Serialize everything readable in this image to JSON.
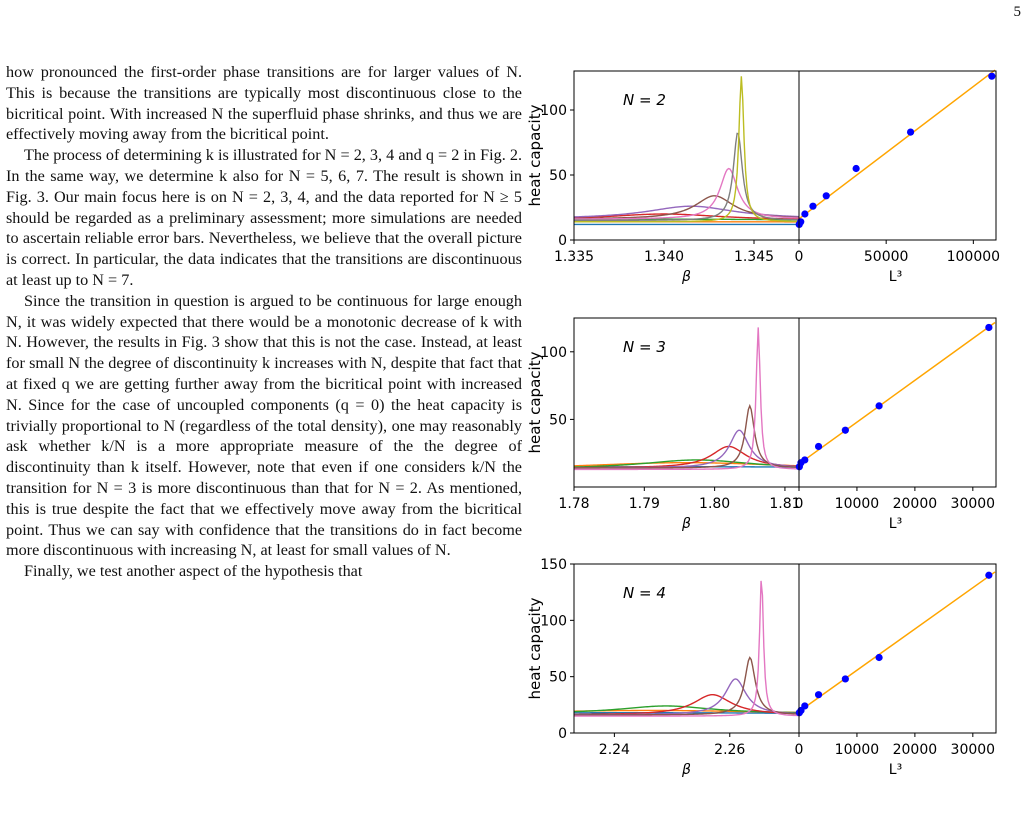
{
  "page_number": "5",
  "paragraphs": [
    "how pronounced the first-order phase transitions are for larger values of N. This is because the transitions are typically most discontinuous close to the bicritical point. With increased N the superfluid phase shrinks, and thus we are effectively moving away from the bicritical point.",
    "The process of determining k is illustrated for N = 2, 3, 4 and q = 2 in Fig. 2. In the same way, we determine k also for N = 5, 6, 7. The result is shown in Fig. 3. Our main focus here is on N = 2, 3, 4, and the data reported for N ≥ 5 should be regarded as a preliminary assessment; more simulations are needed to ascertain reliable error bars. Nevertheless, we believe that the overall picture is correct. In particular, the data indicates that the transitions are discontinuous at least up to N = 7.",
    "Since the transition in question is argued to be continuous for large enough N, it was widely expected that there would be a monotonic decrease of k with N. However, the results in Fig. 3 show that this is not the case. Instead, at least for small N the degree of discontinuity k increases with N, despite that fact that at fixed q we are getting further away from the bicritical point with increased N. Since for the case of uncoupled components (q = 0) the heat capacity is trivially proportional to N (regardless of the total density), one may reasonably ask whether k/N is a more appropriate measure of the the degree of discontinuity than k itself. However, note that even if one considers k/N the transition for N = 3 is more discontinuous than that for N = 2. As mentioned, this is true despite the fact that we effectively move away from the bicritical point. Thus we can say with confidence that the transitions do in fact become more discontinuous with increasing N, at least for small values of N.",
    "Finally, we test another aspect of the hypothesis that"
  ],
  "figure": {
    "ylabel": "heat capacity",
    "xlabel_left": "β",
    "xlabel_right": "L³",
    "colors": {
      "line": "#ffa500",
      "points": "#0000ff",
      "curves": [
        "#1f77b4",
        "#ff7f0e",
        "#2ca02c",
        "#d62728",
        "#9467bd",
        "#8c564b",
        "#e377c2",
        "#7f7f7f",
        "#bcbd22"
      ]
    }
  },
  "chart_data": [
    {
      "type": "line",
      "panel_label": "N = 2",
      "xlabel": "β",
      "ylabel": "heat capacity",
      "xlim": [
        1.335,
        1.3475
      ],
      "ylim": [
        0,
        130
      ],
      "xticks": [
        "1.335",
        "1.340",
        "1.345"
      ],
      "yticks": [
        "0",
        "50",
        "100"
      ],
      "series": [
        {
          "peak_x": 1.3398,
          "peak_y": 12,
          "width": 0.03,
          "base": 11
        },
        {
          "peak_x": 1.3398,
          "peak_y": 14,
          "width": 0.03,
          "base": 13
        },
        {
          "peak_x": 1.3395,
          "peak_y": 16,
          "width": 0.02,
          "base": 13
        },
        {
          "peak_x": 1.34,
          "peak_y": 20,
          "width": 0.004,
          "base": 15
        },
        {
          "peak_x": 1.3415,
          "peak_y": 26,
          "width": 0.003,
          "base": 16
        },
        {
          "peak_x": 1.3428,
          "peak_y": 34,
          "width": 0.0013,
          "base": 16
        },
        {
          "peak_x": 1.3436,
          "peak_y": 55,
          "width": 0.0006,
          "base": 16
        },
        {
          "peak_x": 1.3441,
          "peak_y": 83,
          "width": 0.0003,
          "base": 15
        },
        {
          "peak_x": 1.3443,
          "peak_y": 126,
          "width": 0.00017,
          "base": 14
        }
      ],
      "fit": {
        "xlim": [
          0,
          113000
        ],
        "xticks": [
          "0",
          "50000",
          "100000"
        ],
        "points_x": [
          125,
          1000,
          3375,
          8000,
          15625,
          32768,
          64000,
          110592
        ],
        "points_y": [
          12,
          14,
          20,
          26,
          34,
          55,
          83,
          126
        ]
      }
    },
    {
      "type": "line",
      "panel_label": "N = 3",
      "xlabel": "β",
      "ylabel": "heat capacity",
      "xlim": [
        1.78,
        1.812
      ],
      "ylim": [
        0,
        125
      ],
      "xticks": [
        "1.78",
        "1.79",
        "1.80",
        "1.81"
      ],
      "yticks": [
        "50",
        "100"
      ],
      "series": [
        {
          "peak_x": 1.7955,
          "peak_y": 15,
          "width": 0.05,
          "base": 12
        },
        {
          "peak_x": 1.796,
          "peak_y": 18,
          "width": 0.02,
          "base": 12
        },
        {
          "peak_x": 1.7975,
          "peak_y": 20,
          "width": 0.01,
          "base": 13
        },
        {
          "peak_x": 1.802,
          "peak_y": 30,
          "width": 0.003,
          "base": 14
        },
        {
          "peak_x": 1.8035,
          "peak_y": 42,
          "width": 0.0017,
          "base": 14
        },
        {
          "peak_x": 1.805,
          "peak_y": 60,
          "width": 0.0008,
          "base": 14
        },
        {
          "peak_x": 1.8062,
          "peak_y": 118,
          "width": 0.00035,
          "base": 13
        }
      ],
      "fit": {
        "xlim": [
          0,
          34000
        ],
        "xticks": [
          "0",
          "10000",
          "20000",
          "30000"
        ],
        "points_x": [
          64,
          343,
          1000,
          3375,
          8000,
          13824,
          32768
        ],
        "points_y": [
          15,
          18,
          20,
          30,
          42,
          60,
          118
        ]
      }
    },
    {
      "type": "line",
      "panel_label": "N = 4",
      "xlabel": "β",
      "ylabel": "heat capacity",
      "xlim": [
        2.233,
        2.272
      ],
      "ylim": [
        0,
        150
      ],
      "xticks": [
        "2.24",
        "2.26"
      ],
      "yticks": [
        "0",
        "50",
        "100",
        "150"
      ],
      "series": [
        {
          "peak_x": 2.243,
          "peak_y": 18,
          "width": 0.05,
          "base": 16
        },
        {
          "peak_x": 2.246,
          "peak_y": 20,
          "width": 0.03,
          "base": 16
        },
        {
          "peak_x": 2.249,
          "peak_y": 24,
          "width": 0.01,
          "base": 17
        },
        {
          "peak_x": 2.257,
          "peak_y": 34,
          "width": 0.004,
          "base": 16
        },
        {
          "peak_x": 2.261,
          "peak_y": 48,
          "width": 0.0022,
          "base": 16
        },
        {
          "peak_x": 2.2635,
          "peak_y": 67,
          "width": 0.0011,
          "base": 16
        },
        {
          "peak_x": 2.2655,
          "peak_y": 140,
          "width": 0.0004,
          "base": 15
        }
      ],
      "fit": {
        "xlim": [
          0,
          34000
        ],
        "xticks": [
          "0",
          "10000",
          "20000",
          "30000"
        ],
        "points_x": [
          64,
          343,
          1000,
          3375,
          8000,
          13824,
          32768
        ],
        "points_y": [
          18,
          20,
          24,
          34,
          48,
          67,
          140
        ]
      }
    }
  ]
}
